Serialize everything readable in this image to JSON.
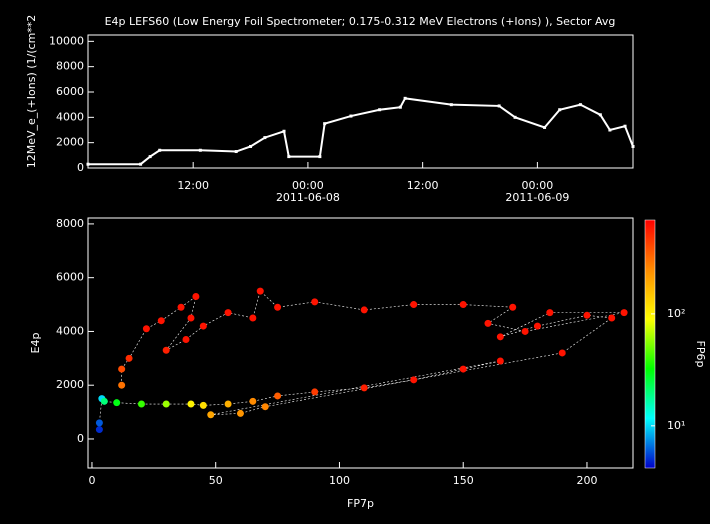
{
  "chart_data": [
    {
      "type": "line",
      "title": "E4p LEFS60 (Low Energy Foil Spectrometer; 0.175-0.312 MeV Electrons (+Ions) ), Sector Avg",
      "y_label": "12MeV_e_(+Ions) (1/(cm**2",
      "x": [
        "2011-06-07T01:00",
        "2011-06-07T06:30",
        "2011-06-07T07:30",
        "2011-06-07T08:30",
        "2011-06-07T12:45",
        "2011-06-07T16:30",
        "2011-06-07T18:00",
        "2011-06-07T19:30",
        "2011-06-07T21:30",
        "2011-06-07T22:00",
        "2011-06-08T01:15",
        "2011-06-08T01:45",
        "2011-06-08T04:30",
        "2011-06-08T07:30",
        "2011-06-08T09:40",
        "2011-06-08T10:10",
        "2011-06-08T15:00",
        "2011-06-08T20:00",
        "2011-06-08T21:40",
        "2011-06-09T00:45",
        "2011-06-09T02:20",
        "2011-06-09T04:30",
        "2011-06-09T06:35",
        "2011-06-09T07:35",
        "2011-06-09T09:10",
        "2011-06-09T10:00"
      ],
      "values": [
        300,
        300,
        900,
        1400,
        1400,
        1300,
        1700,
        2400,
        2900,
        900,
        900,
        3500,
        4100,
        4600,
        4800,
        5500,
        5000,
        4900,
        4000,
        3200,
        4600,
        5000,
        4200,
        3000,
        3300,
        1700
      ],
      "color": "#ffffff",
      "xlim": [
        "2011-06-07T01:00",
        "2011-06-09T10:00"
      ],
      "xticks": [
        {
          "value": "2011-06-07T12:00",
          "label": [
            "12:00"
          ]
        },
        {
          "value": "2011-06-08T00:00",
          "label": [
            "00:00",
            "2011-06-08"
          ]
        },
        {
          "value": "2011-06-08T12:00",
          "label": [
            "12:00"
          ]
        },
        {
          "value": "2011-06-09T00:00",
          "label": [
            "00:00",
            "2011-06-09"
          ]
        }
      ],
      "ylim": [
        0,
        10500
      ],
      "yticks": [
        0,
        2000,
        4000,
        6000,
        8000,
        10000
      ]
    },
    {
      "type": "scatter",
      "x_label": "FP7p",
      "y_label": "E4p",
      "z_label": "FP6p",
      "x": [
        3,
        3,
        4,
        5,
        10,
        20,
        30,
        40,
        45,
        55,
        65,
        75,
        90,
        110,
        130,
        150,
        165,
        48,
        60,
        70,
        190,
        210,
        200,
        180,
        165,
        185,
        215,
        175,
        160,
        170,
        150,
        130,
        110,
        90,
        75,
        68,
        65,
        55,
        45,
        38,
        30,
        40,
        42,
        36,
        28,
        22,
        15,
        12,
        12
      ],
      "values": [
        350,
        600,
        1500,
        1400,
        1350,
        1300,
        1300,
        1300,
        1250,
        1300,
        1400,
        1600,
        1750,
        1900,
        2200,
        2600,
        2900,
        900,
        950,
        1200,
        3200,
        4500,
        4600,
        4200,
        3800,
        4700,
        4700,
        4000,
        4300,
        4900,
        5000,
        5000,
        4800,
        5100,
        4900,
        5500,
        4500,
        4700,
        4200,
        3700,
        3300,
        4500,
        5300,
        4900,
        4400,
        4100,
        3000,
        2600,
        2000
      ],
      "z": [
        5,
        6,
        10,
        20,
        30,
        40,
        60,
        100,
        120,
        180,
        250,
        350,
        450,
        550,
        600,
        600,
        600,
        200,
        230,
        260,
        600,
        600,
        600,
        600,
        600,
        600,
        600,
        600,
        600,
        600,
        600,
        600,
        600,
        600,
        600,
        600,
        600,
        600,
        600,
        600,
        550,
        600,
        600,
        600,
        600,
        600,
        500,
        400,
        300
      ],
      "colormap": [
        "#0000c8",
        "#00ffff",
        "#00ff00",
        "#ffff00",
        "#ff8c00",
        "#ff0000"
      ],
      "xlim": [
        -1.6,
        218.6
      ],
      "xticks": [
        0,
        50,
        100,
        150,
        200
      ],
      "ylim": [
        -1080,
        8220
      ],
      "yticks": [
        0,
        2000,
        4000,
        6000,
        8000
      ],
      "zlim": [
        4.2,
        690
      ],
      "zscale": "log",
      "zticks": [
        {
          "value": 10,
          "label": "10¹"
        },
        {
          "value": 100,
          "label": "10²"
        }
      ]
    }
  ]
}
